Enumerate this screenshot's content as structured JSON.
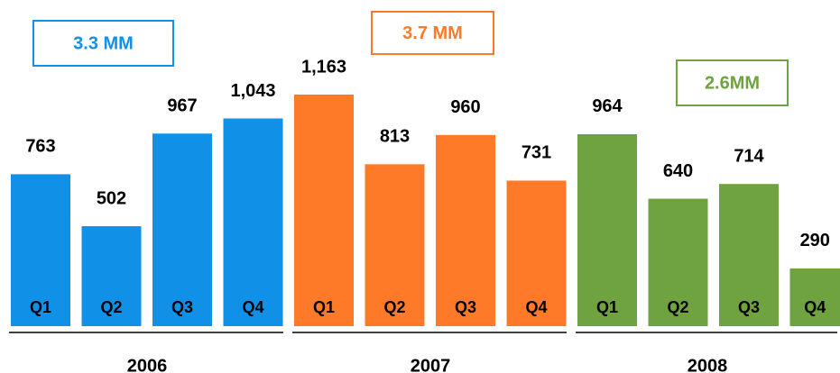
{
  "chart_data": {
    "type": "bar",
    "groups": [
      {
        "name": "2006",
        "total": "3.3 MM",
        "color": "#1190e8",
        "categories": [
          "Q1",
          "Q2",
          "Q3",
          "Q4"
        ],
        "values": [
          763,
          502,
          967,
          1043
        ],
        "value_labels": [
          "763",
          "502",
          "967",
          "1,043"
        ]
      },
      {
        "name": "2007",
        "total": "3.7 MM",
        "color": "#ff7a28",
        "categories": [
          "Q1",
          "Q2",
          "Q3",
          "Q4"
        ],
        "values": [
          1163,
          813,
          960,
          731
        ],
        "value_labels": [
          "1,163",
          "813",
          "960",
          "731"
        ]
      },
      {
        "name": "2008",
        "total": "2.6MM",
        "color": "#6fa33f",
        "categories": [
          "Q1",
          "Q2",
          "Q3",
          "Q4"
        ],
        "values": [
          964,
          640,
          714,
          290
        ],
        "value_labels": [
          "964",
          "640",
          "714",
          "290"
        ]
      }
    ]
  }
}
